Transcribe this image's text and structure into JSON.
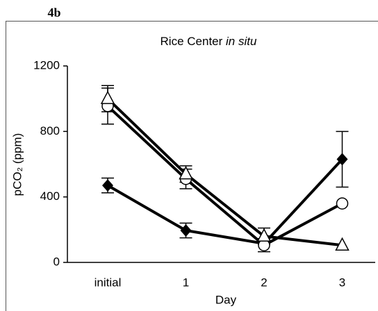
{
  "panel_label": "4b",
  "chart_data": {
    "type": "line",
    "title": "Rice Center",
    "title_emphasis": "in situ",
    "x_label": "Day",
    "y_label": "pCO₂ (ppm)",
    "categories": [
      "initial",
      "1",
      "2",
      "3"
    ],
    "ylim": [
      0,
      1200
    ],
    "yticks": [
      0,
      400,
      800,
      1200
    ],
    "series": [
      {
        "marker": "diamond",
        "color": "#000000",
        "values": [
          470,
          195,
          115,
          630
        ],
        "errors": [
          45,
          45,
          null,
          170
        ]
      },
      {
        "marker": "circle",
        "color": "#000000",
        "values": [
          955,
          510,
          105,
          360
        ],
        "errors": [
          110,
          60,
          40,
          null
        ]
      },
      {
        "marker": "triangle",
        "color": "#000000",
        "values": [
          1000,
          540,
          160,
          105
        ],
        "errors": [
          80,
          50,
          50,
          null
        ]
      }
    ]
  }
}
